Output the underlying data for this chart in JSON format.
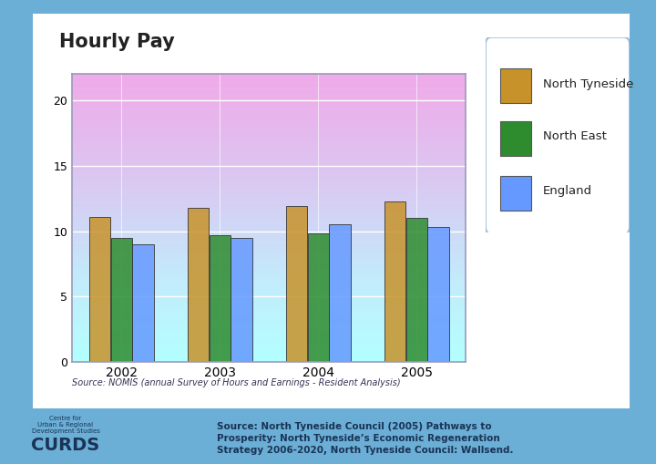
{
  "title": "Hourly Pay",
  "years": [
    "2002",
    "2003",
    "2004",
    "2005"
  ],
  "series": {
    "North Tyneside": [
      11.1,
      11.8,
      11.9,
      12.3
    ],
    "North East": [
      9.5,
      9.7,
      9.8,
      11.0
    ],
    "England": [
      9.0,
      9.5,
      10.5,
      10.3
    ]
  },
  "bar_colors": {
    "North Tyneside": "#C8922A",
    "North East": "#2E8B2E",
    "England": "#6699FF"
  },
  "ylim": [
    0,
    22
  ],
  "yticks": [
    0,
    5,
    10,
    15,
    20
  ],
  "source_text": "Source: NOMIS (annual Survey of Hours and Earnings - Resident Analysis)",
  "outer_bg": "#6BAED6",
  "title_color": "#222222",
  "bar_width": 0.22
}
